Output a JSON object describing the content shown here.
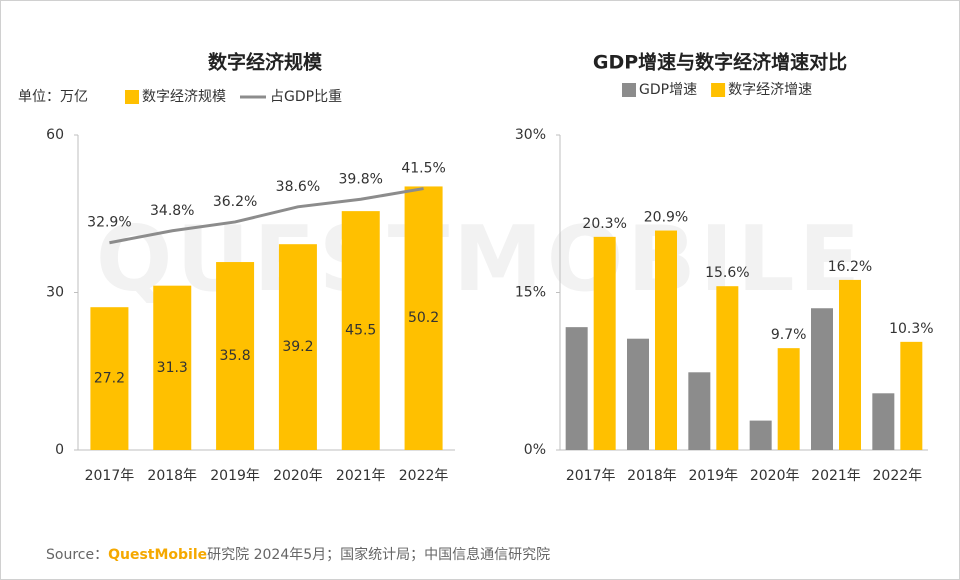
{
  "chart_data": [
    {
      "type": "combo",
      "title": "数字经济规模",
      "unit_label": "单位：万亿",
      "categories": [
        "2017年",
        "2018年",
        "2019年",
        "2020年",
        "2021年",
        "2022年"
      ],
      "series": [
        {
          "name": "数字经济规模",
          "type": "bar",
          "color": "#ffc000",
          "values": [
            27.2,
            31.3,
            35.8,
            39.2,
            45.5,
            50.2
          ]
        },
        {
          "name": "占GDP比重",
          "type": "line",
          "axis": "y2",
          "color": "#8c8c8c",
          "values": [
            32.9,
            34.8,
            36.2,
            38.6,
            39.8,
            41.5
          ],
          "value_labels": [
            "32.9%",
            "34.8%",
            "36.2%",
            "38.6%",
            "39.8%",
            "41.5%"
          ]
        }
      ],
      "ylim": [
        0,
        60
      ],
      "yticks": [
        0,
        30,
        60
      ],
      "y2lim": [
        0,
        50
      ]
    },
    {
      "type": "bar",
      "title": "GDP增速与数字经济增速对比",
      "categories": [
        "2017年",
        "2018年",
        "2019年",
        "2020年",
        "2021年",
        "2022年"
      ],
      "series": [
        {
          "name": "GDP增速",
          "color": "#8c8c8c",
          "values": [
            11.7,
            10.6,
            7.4,
            2.8,
            13.5,
            5.4
          ]
        },
        {
          "name": "数字经济增速",
          "color": "#ffc000",
          "values": [
            20.3,
            20.9,
            15.6,
            9.7,
            16.2,
            10.3
          ],
          "value_labels": [
            "20.3%",
            "20.9%",
            "15.6%",
            "9.7%",
            "16.2%",
            "10.3%"
          ]
        }
      ],
      "ylim": [
        0,
        30
      ],
      "yticks": [
        {
          "value": 0,
          "label": "0%"
        },
        {
          "value": 15,
          "label": "15%"
        },
        {
          "value": 30,
          "label": "30%"
        }
      ]
    }
  ],
  "watermark": "QUESTMOBILE",
  "source": {
    "prefix": "Source：",
    "brand": "QuestMobile",
    "text": "研究院 2024年5月；国家统计局；中国信息通信研究院"
  }
}
